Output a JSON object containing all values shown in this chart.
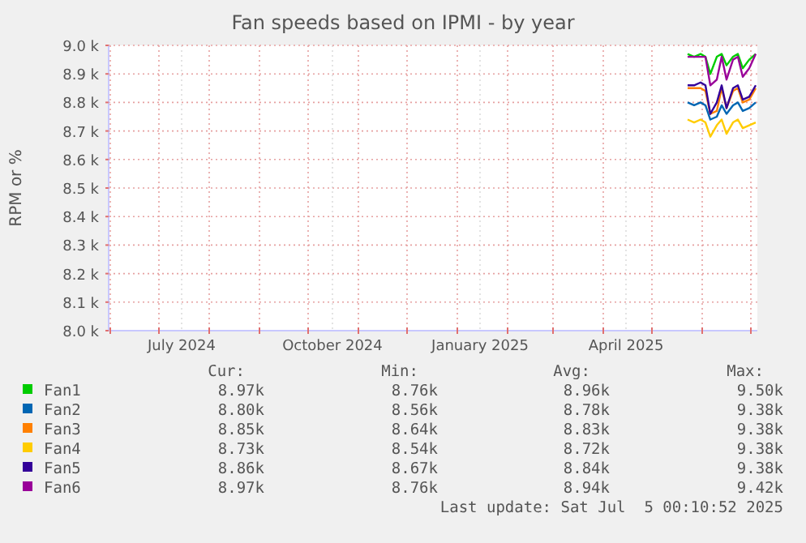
{
  "chart_data": {
    "type": "line",
    "title": "Fan speeds based on IPMI - by year",
    "ylabel": "RPM or %",
    "x": [
      "2025-05-23",
      "2025-05-27",
      "2025-05-31",
      "2025-06-03",
      "2025-06-06",
      "2025-06-10",
      "2025-06-13",
      "2025-06-16",
      "2025-06-20",
      "2025-06-23",
      "2025-06-26",
      "2025-06-30",
      "2025-07-04"
    ],
    "series": [
      {
        "name": "Fan1",
        "color": "#00cc00",
        "values": [
          8.97,
          8.96,
          8.97,
          8.96,
          8.9,
          8.96,
          8.97,
          8.93,
          8.96,
          8.97,
          8.92,
          8.95,
          8.97
        ]
      },
      {
        "name": "Fan2",
        "color": "#0066b3",
        "values": [
          8.8,
          8.79,
          8.8,
          8.79,
          8.74,
          8.75,
          8.79,
          8.76,
          8.79,
          8.8,
          8.77,
          8.78,
          8.8
        ]
      },
      {
        "name": "Fan3",
        "color": "#ff8000",
        "values": [
          8.85,
          8.85,
          8.85,
          8.84,
          8.76,
          8.77,
          8.85,
          8.78,
          8.84,
          8.85,
          8.8,
          8.81,
          8.85
        ]
      },
      {
        "name": "Fan4",
        "color": "#ffcc00",
        "values": [
          8.74,
          8.73,
          8.74,
          8.73,
          8.68,
          8.72,
          8.74,
          8.69,
          8.73,
          8.74,
          8.71,
          8.72,
          8.73
        ]
      },
      {
        "name": "Fan5",
        "color": "#330099",
        "values": [
          8.86,
          8.86,
          8.87,
          8.86,
          8.76,
          8.8,
          8.86,
          8.78,
          8.85,
          8.86,
          8.81,
          8.82,
          8.86
        ]
      },
      {
        "name": "Fan6",
        "color": "#990099",
        "values": [
          8.96,
          8.96,
          8.96,
          8.96,
          8.86,
          8.88,
          8.96,
          8.88,
          8.95,
          8.96,
          8.89,
          8.92,
          8.97
        ]
      }
    ],
    "xlim": [
      "2024-05-31",
      "2025-07-05"
    ],
    "xticks": [
      {
        "value": "2024-06-01",
        "label": null
      },
      {
        "value": "2024-07-01",
        "label": null
      },
      {
        "value": "2024-07-15",
        "label": "July 2024"
      },
      {
        "value": "2024-08-01",
        "label": null
      },
      {
        "value": "2024-09-01",
        "label": null
      },
      {
        "value": "2024-10-01",
        "label": null
      },
      {
        "value": "2024-10-16",
        "label": "October 2024"
      },
      {
        "value": "2024-11-01",
        "label": null
      },
      {
        "value": "2024-12-01",
        "label": null
      },
      {
        "value": "2025-01-01",
        "label": null
      },
      {
        "value": "2025-01-15",
        "label": "January 2025"
      },
      {
        "value": "2025-02-01",
        "label": null
      },
      {
        "value": "2025-03-01",
        "label": null
      },
      {
        "value": "2025-04-01",
        "label": null
      },
      {
        "value": "2025-04-15",
        "label": "April 2025"
      },
      {
        "value": "2025-05-01",
        "label": null
      },
      {
        "value": "2025-06-01",
        "label": null
      },
      {
        "value": "2025-07-01",
        "label": null
      }
    ],
    "ylim": [
      8.0,
      9.0
    ],
    "yticks": [
      {
        "value": 8.0,
        "label": "8.0 k"
      },
      {
        "value": 8.1,
        "label": "8.1 k"
      },
      {
        "value": 8.2,
        "label": "8.2 k"
      },
      {
        "value": 8.3,
        "label": "8.3 k"
      },
      {
        "value": 8.4,
        "label": "8.4 k"
      },
      {
        "value": 8.5,
        "label": "8.5 k"
      },
      {
        "value": 8.6,
        "label": "8.6 k"
      },
      {
        "value": 8.7,
        "label": "8.7 k"
      },
      {
        "value": 8.8,
        "label": "8.8 k"
      },
      {
        "value": 8.9,
        "label": "8.9 k"
      },
      {
        "value": 9.0,
        "label": "9.0 k"
      }
    ],
    "grid": true,
    "legend": "bottom",
    "line_style": "solid",
    "marker": "none",
    "annotations": [
      "Cur:",
      "Min:",
      "Avg:",
      "Max:",
      "8.97k",
      "8.76k",
      "8.96k",
      "9.50k",
      "8.80k",
      "8.56k",
      "8.78k",
      "9.38k",
      "8.85k",
      "8.64k",
      "8.83k",
      "9.38k",
      "8.73k",
      "8.54k",
      "8.72k",
      "9.38k",
      "8.86k",
      "8.67k",
      "8.84k",
      "9.38k",
      "8.97k",
      "8.76k",
      "8.94k",
      "9.42k",
      "Last update: Sat Jul  5 00:10:52 2025"
    ]
  }
}
